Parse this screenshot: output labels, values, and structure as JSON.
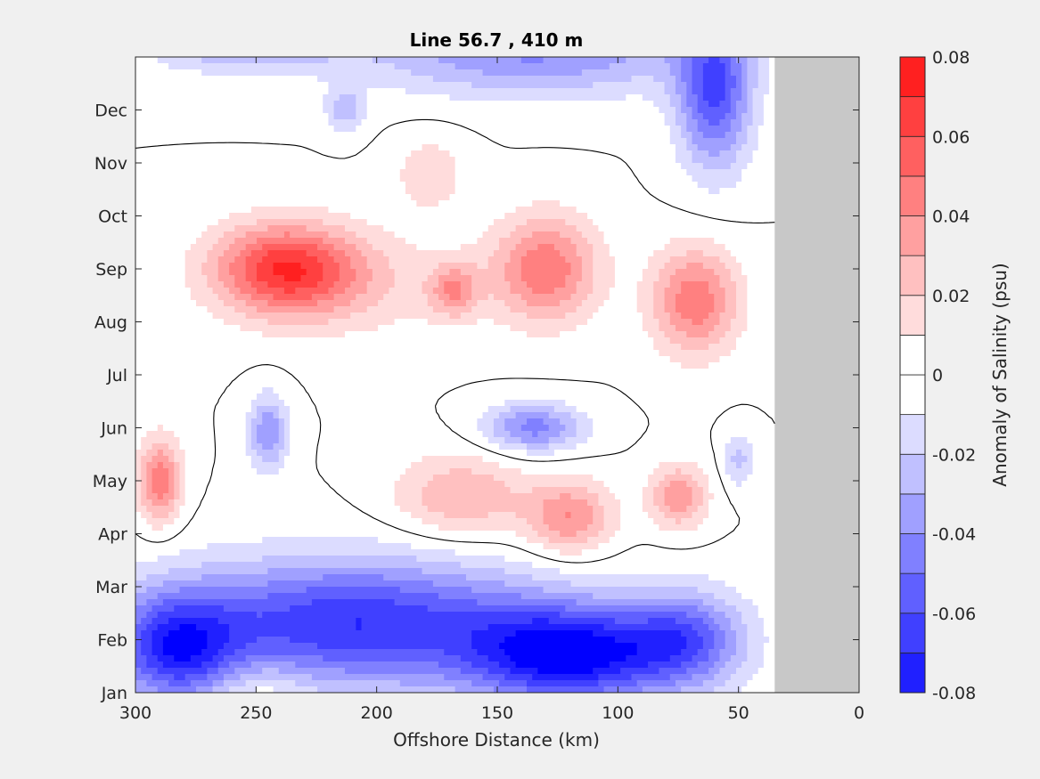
{
  "chart_data": {
    "type": "heatmap",
    "title": "Line 56.7 , 410 m",
    "xlabel": "Offshore Distance (km)",
    "ylabel": "",
    "xlim": [
      300,
      0
    ],
    "x_reversed": true,
    "x_ticks": [
      300,
      250,
      200,
      150,
      100,
      50,
      0
    ],
    "x_tick_labels": [
      "300",
      "250",
      "200",
      "150",
      "100",
      "50",
      "0"
    ],
    "y_ticks": [
      1,
      2,
      3,
      4,
      5,
      6,
      7,
      8,
      9,
      10,
      11,
      12
    ],
    "y_tick_labels": [
      "Jan",
      "Feb",
      "Mar",
      "Apr",
      "May",
      "Jun",
      "Jul",
      "Aug",
      "Sep",
      "Oct",
      "Nov",
      "Dec"
    ],
    "ylim": [
      1,
      13
    ],
    "no_data_region": {
      "x_from": 0,
      "x_to": 35,
      "color": "#c8c8c8"
    },
    "zero_contour": true,
    "colorbar": {
      "label": "Anomaly of Salinity (psu)",
      "clim": [
        -0.08,
        0.08
      ],
      "ticks": [
        0.08,
        0.06,
        0.04,
        0.02,
        0,
        -0.02,
        -0.04,
        -0.06,
        -0.08
      ],
      "tick_labels": [
        "0.08",
        "0.06",
        "0.04",
        "0.02",
        "0",
        "-0.02",
        "-0.04",
        "-0.06",
        "-0.08"
      ],
      "levels": [
        -0.08,
        -0.07,
        -0.06,
        -0.05,
        -0.04,
        -0.03,
        -0.02,
        -0.01,
        0,
        0.01,
        0.02,
        0.03,
        0.04,
        0.05,
        0.06,
        0.07,
        0.08
      ],
      "colors": [
        "#0000ff",
        "#2020ff",
        "#4040ff",
        "#6060ff",
        "#8080ff",
        "#a0a0ff",
        "#c0c0ff",
        "#dcdcff",
        "#ffffff",
        "#ffffff",
        "#ffdcdc",
        "#ffc0c0",
        "#ffa0a0",
        "#ff8080",
        "#ff6060",
        "#ff4040",
        "#ff2020",
        "#ff0000"
      ]
    },
    "features": [
      {
        "x": 238,
        "month": 9.0,
        "value": 0.065,
        "sx": 30,
        "sy": 0.85
      },
      {
        "x": 205,
        "month": 8.7,
        "value": 0.015,
        "sx": 45,
        "sy": 1.0
      },
      {
        "x": 130,
        "month": 9.0,
        "value": 0.048,
        "sx": 22,
        "sy": 1.0
      },
      {
        "x": 168,
        "month": 8.6,
        "value": 0.035,
        "sx": 10,
        "sy": 0.5
      },
      {
        "x": 68,
        "month": 8.4,
        "value": 0.048,
        "sx": 18,
        "sy": 1.0
      },
      {
        "x": 290,
        "month": 5.0,
        "value": 0.048,
        "sx": 9,
        "sy": 0.8
      },
      {
        "x": 165,
        "month": 4.7,
        "value": 0.03,
        "sx": 28,
        "sy": 0.8
      },
      {
        "x": 120,
        "month": 4.3,
        "value": 0.04,
        "sx": 18,
        "sy": 0.7
      },
      {
        "x": 75,
        "month": 4.7,
        "value": 0.038,
        "sx": 12,
        "sy": 0.6
      },
      {
        "x": 178,
        "month": 10.8,
        "value": 0.018,
        "sx": 15,
        "sy": 0.7
      },
      {
        "x": 135,
        "month": 6.0,
        "value": -0.045,
        "sx": 20,
        "sy": 0.45
      },
      {
        "x": 50,
        "month": 5.4,
        "value": -0.025,
        "sx": 6,
        "sy": 0.5
      },
      {
        "x": 245,
        "month": 5.9,
        "value": -0.04,
        "sx": 8,
        "sy": 0.7
      },
      {
        "x": 213,
        "month": 12.0,
        "value": -0.028,
        "sx": 8,
        "sy": 0.4
      },
      {
        "x": 60,
        "month": 12.3,
        "value": -0.06,
        "sx": 15,
        "sy": 1.4
      },
      {
        "x": 135,
        "month": 13.1,
        "value": -0.042,
        "sx": 70,
        "sy": 0.8
      },
      {
        "x": 255,
        "month": 13.2,
        "value": -0.03,
        "sx": 40,
        "sy": 0.5
      },
      {
        "x": 210,
        "month": 2.3,
        "value": -0.07,
        "sx": 80,
        "sy": 1.2
      },
      {
        "x": 283,
        "month": 1.8,
        "value": -0.06,
        "sx": 25,
        "sy": 1.0
      },
      {
        "x": 120,
        "month": 1.7,
        "value": -0.08,
        "sx": 40,
        "sy": 0.9
      },
      {
        "x": 72,
        "month": 2.0,
        "value": -0.05,
        "sx": 25,
        "sy": 0.9
      },
      {
        "x": 250,
        "month": 1.0,
        "value": 0.015,
        "sx": 22,
        "sy": 0.6
      }
    ]
  }
}
